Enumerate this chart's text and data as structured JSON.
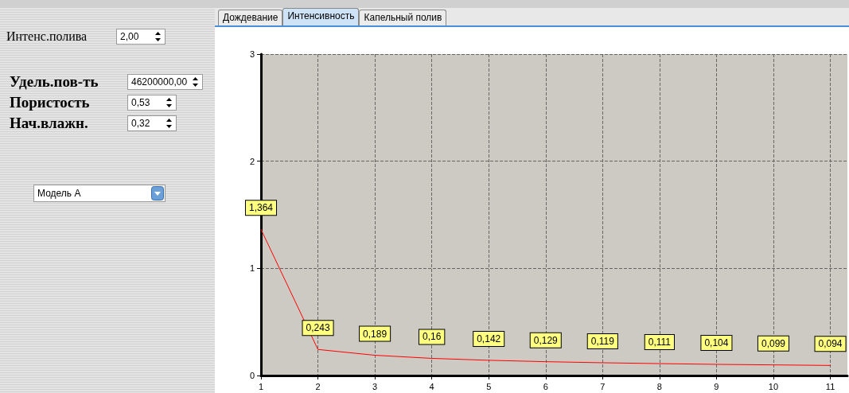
{
  "chart_data": [
    {
      "type": "other",
      "annotations": [
        "Интенс.полива",
        "2,00",
        "Удель.пов-ть",
        "46200000,00",
        "Пористость",
        "0,53",
        "Нач.влажн.",
        "0,32",
        "Модель А"
      ]
    },
    {
      "type": "line",
      "annotations": [
        "Дождевание",
        "Интенсивность",
        "Капельный полив"
      ],
      "x": [
        1,
        2,
        3,
        4,
        5,
        6,
        7,
        8,
        9,
        10,
        11
      ],
      "series": [
        {
          "color": "#ff0000",
          "values": [
            1.364,
            0.243,
            0.189,
            0.16,
            0.142,
            0.129,
            0.119,
            0.111,
            0.104,
            0.099,
            0.094
          ],
          "value_labels": [
            "1,364",
            "0,243",
            "0,189",
            "0,16",
            "0,142",
            "0,129",
            "0,119",
            "0,111",
            "0,104",
            "0,099",
            "0,094"
          ]
        }
      ],
      "xlim": [
        1,
        11.3
      ],
      "xticks": [
        1,
        2,
        3,
        4,
        5,
        6,
        7,
        8,
        9,
        10,
        11
      ],
      "ylim": [
        0,
        3
      ],
      "yticks": [
        0,
        1,
        2,
        3
      ],
      "grid": true,
      "marker": "none",
      "line_style": "solid"
    }
  ]
}
